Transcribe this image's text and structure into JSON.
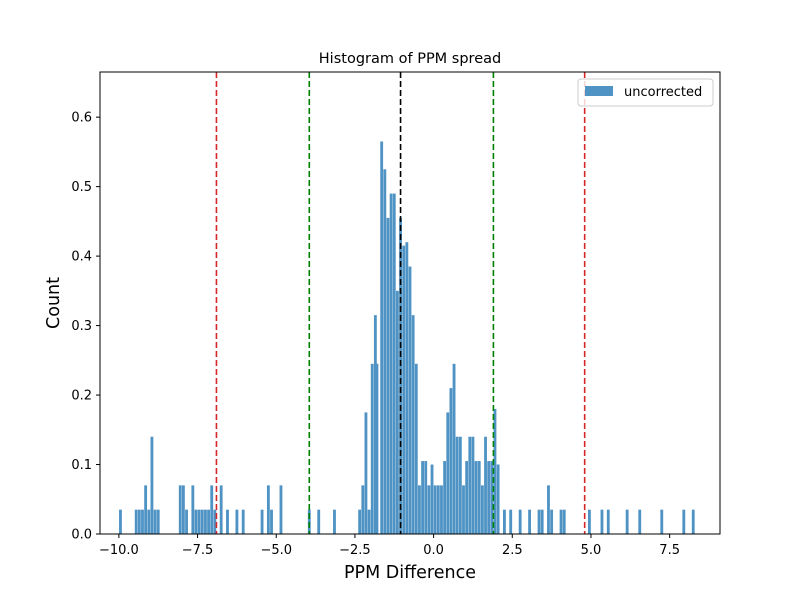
{
  "chart_data": {
    "type": "bar",
    "title": "Histogram of PPM spread",
    "xlabel": "PPM Difference",
    "ylabel": "Count",
    "xlim": [
      -10.6,
      9.1
    ],
    "ylim": [
      0,
      0.665
    ],
    "xticks": [
      -10.0,
      -7.5,
      -5.0,
      -2.5,
      0.0,
      2.5,
      5.0,
      7.5
    ],
    "xtick_labels": [
      "−10.0",
      "−7.5",
      "−5.0",
      "−2.5",
      "0.0",
      "2.5",
      "5.0",
      "7.5"
    ],
    "yticks": [
      0.0,
      0.1,
      0.2,
      0.3,
      0.4,
      0.5,
      0.6
    ],
    "ytick_labels": [
      "0.0",
      "0.1",
      "0.2",
      "0.3",
      "0.4",
      "0.5",
      "0.6"
    ],
    "legend": {
      "position": "top-right",
      "entries": [
        "uncorrected"
      ]
    },
    "grid": false,
    "colors": {
      "bars": "#4e93c4",
      "mean_line": "#000000",
      "inner_lines": "#008000",
      "outer_lines": "#d62728"
    },
    "bin_width": 0.09,
    "bins": [
      [
        -9.95,
        0.035
      ],
      [
        -9.45,
        0.035
      ],
      [
        -9.35,
        0.035
      ],
      [
        -9.25,
        0.035
      ],
      [
        -9.15,
        0.07
      ],
      [
        -9.05,
        0.035
      ],
      [
        -8.95,
        0.14
      ],
      [
        -8.85,
        0.035
      ],
      [
        -8.75,
        0.035
      ],
      [
        -8.05,
        0.07
      ],
      [
        -7.95,
        0.07
      ],
      [
        -7.85,
        0.035
      ],
      [
        -7.65,
        0.07
      ],
      [
        -7.55,
        0.035
      ],
      [
        -7.45,
        0.035
      ],
      [
        -7.35,
        0.035
      ],
      [
        -7.25,
        0.035
      ],
      [
        -7.15,
        0.035
      ],
      [
        -7.05,
        0.07
      ],
      [
        -6.95,
        0.035
      ],
      [
        -6.75,
        0.07
      ],
      [
        -6.55,
        0.035
      ],
      [
        -6.25,
        0.035
      ],
      [
        -6.05,
        0.035
      ],
      [
        -5.45,
        0.035
      ],
      [
        -5.25,
        0.07
      ],
      [
        -5.15,
        0.035
      ],
      [
        -4.85,
        0.07
      ],
      [
        -3.95,
        0.035
      ],
      [
        -3.65,
        0.035
      ],
      [
        -3.15,
        0.035
      ],
      [
        -2.35,
        0.035
      ],
      [
        -2.25,
        0.07
      ],
      [
        -2.15,
        0.175
      ],
      [
        -2.05,
        0.035
      ],
      [
        -1.95,
        0.245
      ],
      [
        -1.85,
        0.315
      ],
      [
        -1.8,
        0.245
      ],
      [
        -1.65,
        0.565
      ],
      [
        -1.55,
        0.525
      ],
      [
        -1.45,
        0.455
      ],
      [
        -1.35,
        0.49
      ],
      [
        -1.25,
        0.49
      ],
      [
        -1.15,
        0.35
      ],
      [
        -1.05,
        0.455
      ],
      [
        -0.95,
        0.415
      ],
      [
        -0.85,
        0.42
      ],
      [
        -0.75,
        0.385
      ],
      [
        -0.65,
        0.315
      ],
      [
        -0.55,
        0.245
      ],
      [
        -0.45,
        0.07
      ],
      [
        -0.35,
        0.105
      ],
      [
        -0.25,
        0.105
      ],
      [
        -0.15,
        0.07
      ],
      [
        -0.05,
        0.1
      ],
      [
        0.05,
        0.07
      ],
      [
        0.15,
        0.07
      ],
      [
        0.25,
        0.07
      ],
      [
        0.35,
        0.105
      ],
      [
        0.45,
        0.175
      ],
      [
        0.55,
        0.21
      ],
      [
        0.65,
        0.245
      ],
      [
        0.75,
        0.14
      ],
      [
        0.85,
        0.14
      ],
      [
        0.95,
        0.07
      ],
      [
        1.05,
        0.105
      ],
      [
        1.15,
        0.14
      ],
      [
        1.25,
        0.14
      ],
      [
        1.35,
        0.105
      ],
      [
        1.45,
        0.105
      ],
      [
        1.55,
        0.07
      ],
      [
        1.65,
        0.14
      ],
      [
        1.75,
        0.105
      ],
      [
        1.85,
        0.105
      ],
      [
        1.95,
        0.18
      ],
      [
        2.05,
        0.1
      ],
      [
        2.25,
        0.035
      ],
      [
        2.45,
        0.035
      ],
      [
        2.75,
        0.035
      ],
      [
        3.05,
        0.035
      ],
      [
        3.35,
        0.035
      ],
      [
        3.45,
        0.035
      ],
      [
        3.65,
        0.07
      ],
      [
        3.75,
        0.035
      ],
      [
        4.05,
        0.035
      ],
      [
        4.15,
        0.035
      ],
      [
        4.95,
        0.035
      ],
      [
        5.35,
        0.035
      ],
      [
        5.55,
        0.035
      ],
      [
        6.15,
        0.035
      ],
      [
        6.55,
        0.035
      ],
      [
        7.25,
        0.035
      ],
      [
        7.95,
        0.035
      ],
      [
        8.25,
        0.035
      ]
    ],
    "vlines": [
      {
        "x": -6.9,
        "color": "#d62728",
        "label": ""
      },
      {
        "x": -3.95,
        "color": "#008000",
        "label": ""
      },
      {
        "x": -1.05,
        "color": "#000000",
        "label": ""
      },
      {
        "x": 1.9,
        "color": "#008000",
        "label": ""
      },
      {
        "x": 4.8,
        "color": "#d62728",
        "label": ""
      }
    ]
  }
}
